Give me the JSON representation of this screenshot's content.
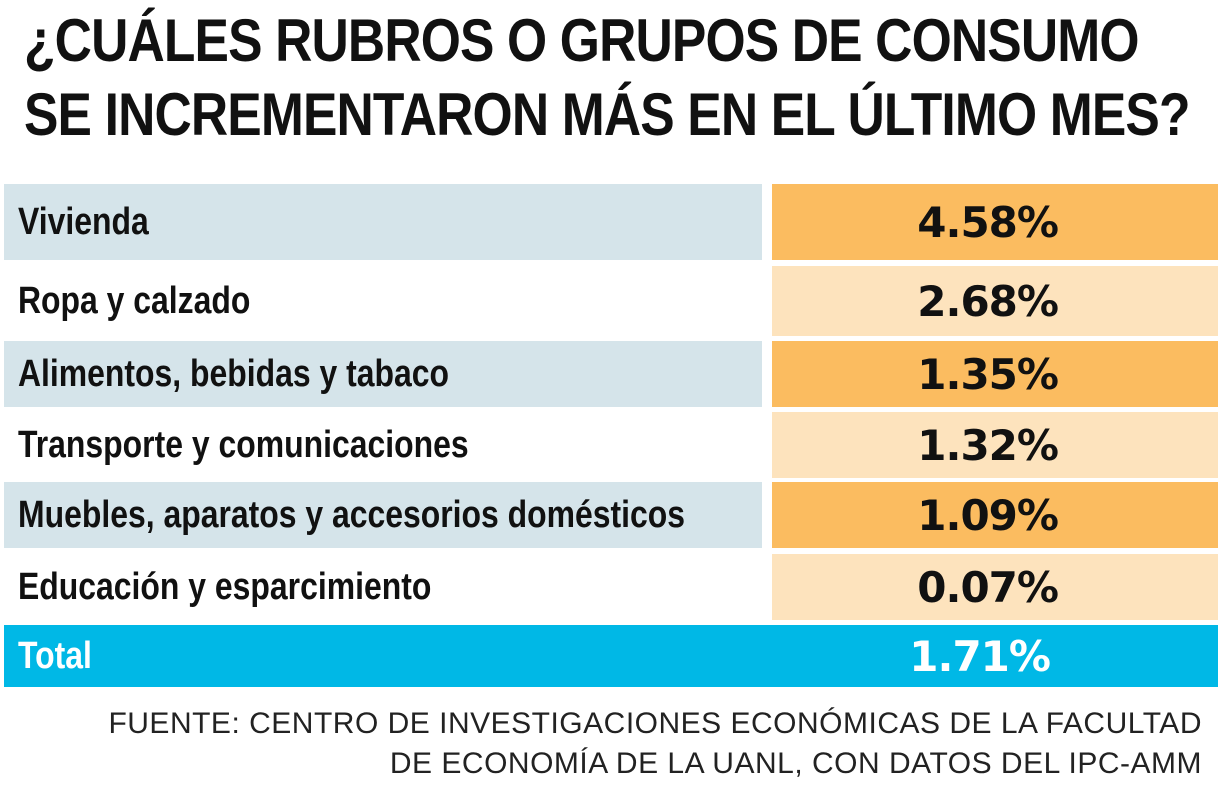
{
  "title": {
    "line1": "¿CUÁLES RUBROS O GRUPOS DE CONSUMO",
    "line2": "SE INCREMENTARON MÁS EN EL ÚLTIMO MES?"
  },
  "colors": {
    "label_light_blue": "#d5e4ea",
    "value_dark_orange": "#fbbc60",
    "value_light_orange": "#fde3bd",
    "total_blue": "#00b8e6"
  },
  "chart_data": {
    "type": "table",
    "title": "¿CUÁLES RUBROS O GRUPOS DE CONSUMO SE INCREMENTARON MÁS EN EL ÚLTIMO MES?",
    "rows": [
      {
        "label": "Vivienda",
        "value": 4.58,
        "display": "4.58%"
      },
      {
        "label": "Ropa y calzado",
        "value": 2.68,
        "display": "2.68%"
      },
      {
        "label": "Alimentos, bebidas y tabaco",
        "value": 1.35,
        "display": "1.35%"
      },
      {
        "label": "Transporte y comunicaciones",
        "value": 1.32,
        "display": "1.32%"
      },
      {
        "label": "Muebles, aparatos y accesorios domésticos",
        "value": 1.09,
        "display": "1.09%"
      },
      {
        "label": "Educación y esparcimiento",
        "value": 0.07,
        "display": "0.07%"
      }
    ],
    "total": {
      "label": "Total",
      "value": 1.71,
      "display": "1.71%"
    },
    "unit": "%"
  },
  "source": {
    "line1": "FUENTE: CENTRO DE INVESTIGACIONES ECONÓMICAS DE LA FACULTAD",
    "line2": "DE ECONOMÍA DE LA UANL, CON DATOS DEL IPC-AMM"
  }
}
